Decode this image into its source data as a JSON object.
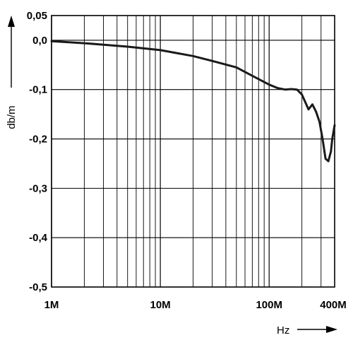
{
  "chart_data": {
    "type": "line",
    "xlabel": "Hz",
    "ylabel": "db/m",
    "x_scale": "log",
    "xlim": [
      1000000,
      400000000
    ],
    "ylim": [
      -0.5,
      0.05
    ],
    "x_ticks": [
      {
        "value": 1000000,
        "label": "1M"
      },
      {
        "value": 10000000,
        "label": "10M"
      },
      {
        "value": 100000000,
        "label": "100M"
      },
      {
        "value": 400000000,
        "label": "400M"
      }
    ],
    "y_ticks": [
      {
        "value": 0.05,
        "label": "0,05"
      },
      {
        "value": 0.0,
        "label": "0,0"
      },
      {
        "value": -0.1,
        "label": "-0,1"
      },
      {
        "value": -0.2,
        "label": "-0,2"
      },
      {
        "value": -0.3,
        "label": "-0,3"
      },
      {
        "value": -0.4,
        "label": "-0,4"
      },
      {
        "value": -0.5,
        "label": "-0,5"
      }
    ],
    "grid": true,
    "series": [
      {
        "color": "#1a1a1a",
        "x": [
          1000000,
          2000000,
          3000000,
          5000000,
          10000000,
          20000000,
          30000000,
          50000000,
          70000000,
          100000000,
          120000000,
          140000000,
          160000000,
          180000000,
          200000000,
          230000000,
          250000000,
          270000000,
          290000000,
          310000000,
          330000000,
          350000000,
          370000000,
          380000000,
          400000000
        ],
        "y": [
          -0.002,
          -0.006,
          -0.009,
          -0.013,
          -0.02,
          -0.032,
          -0.042,
          -0.055,
          -0.072,
          -0.09,
          -0.097,
          -0.1,
          -0.099,
          -0.1,
          -0.11,
          -0.14,
          -0.13,
          -0.145,
          -0.165,
          -0.2,
          -0.24,
          -0.245,
          -0.225,
          -0.2,
          -0.172
        ]
      }
    ]
  }
}
